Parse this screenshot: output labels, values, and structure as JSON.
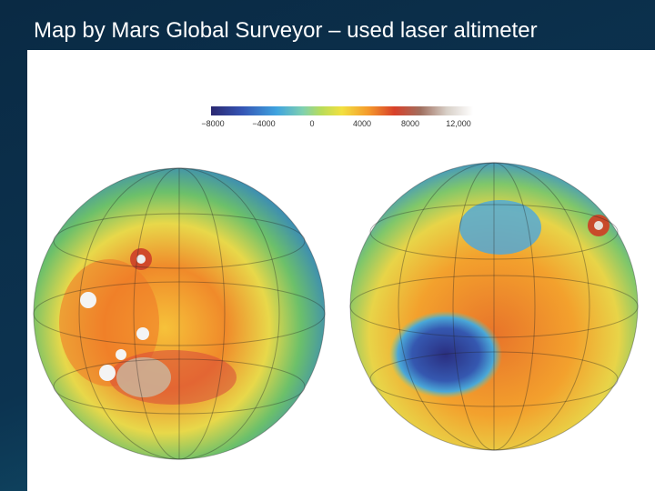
{
  "header": {
    "title": "Map by Mars Global Surveyor – used laser altimeter"
  },
  "color_scale": {
    "labels": [
      "−8000",
      "−4000",
      "0",
      "4000",
      "8000",
      "12,000"
    ]
  }
}
